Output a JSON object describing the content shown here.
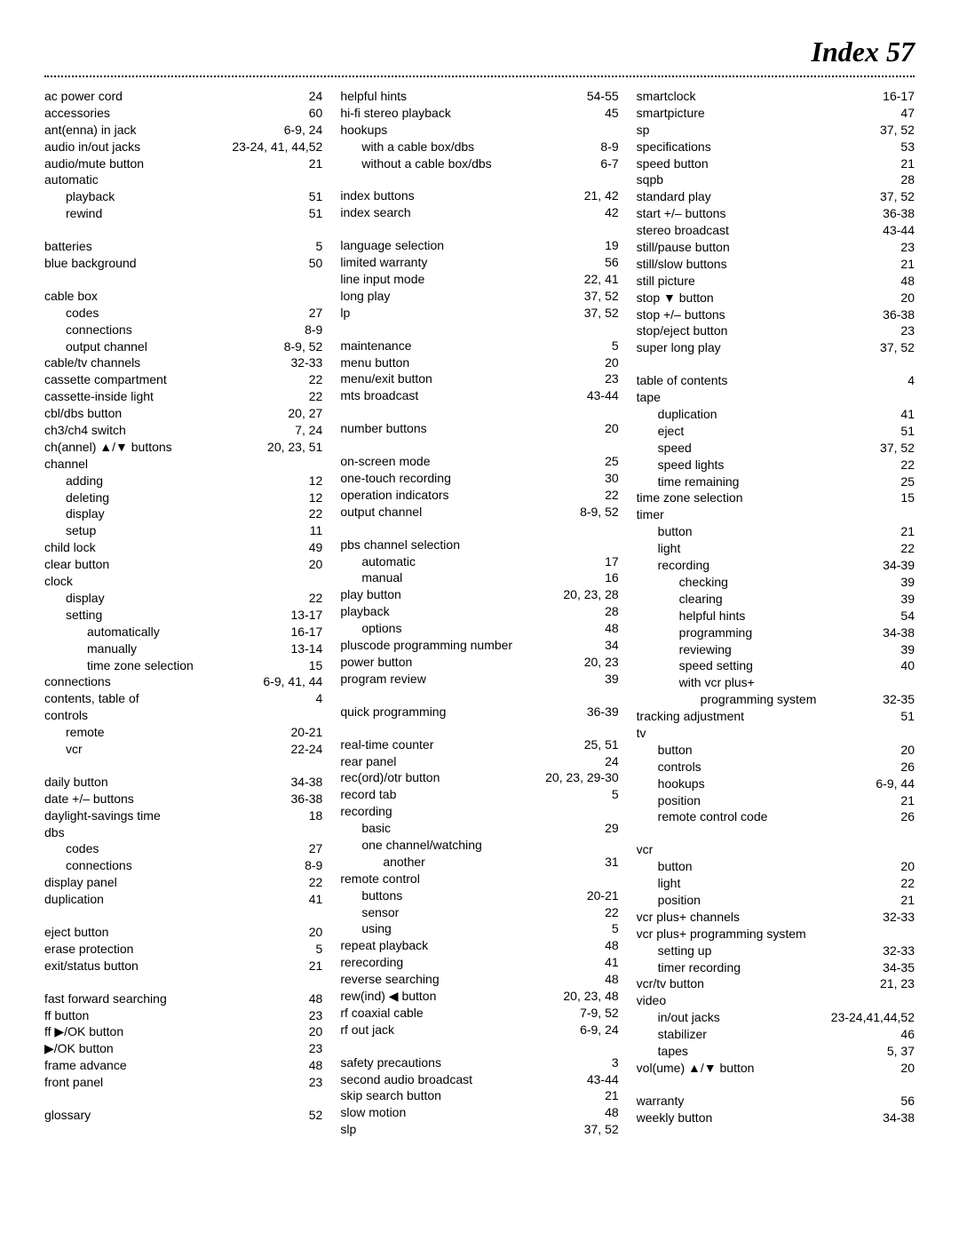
{
  "title": "Index  57",
  "columns": [
    [
      {
        "t": "ac power cord",
        "p": "24"
      },
      {
        "t": "accessories",
        "p": "60"
      },
      {
        "t": "ant(enna) in jack",
        "p": "6-9, 24"
      },
      {
        "t": "audio in/out jacks",
        "p": "23-24, 41, 44,52"
      },
      {
        "t": "audio/mute button",
        "p": "21"
      },
      {
        "t": "automatic",
        "p": ""
      },
      {
        "t": "playback",
        "p": "51",
        "i": 1
      },
      {
        "t": "rewind",
        "p": "51",
        "i": 1
      },
      {
        "gap": true
      },
      {
        "t": "batteries",
        "p": "5"
      },
      {
        "t": "blue background",
        "p": "50"
      },
      {
        "gap": true
      },
      {
        "t": "cable box",
        "p": ""
      },
      {
        "t": "codes",
        "p": "27",
        "i": 1
      },
      {
        "t": "connections",
        "p": "8-9",
        "i": 1
      },
      {
        "t": "output channel",
        "p": "8-9, 52",
        "i": 1
      },
      {
        "t": "cable/tv channels",
        "p": "32-33"
      },
      {
        "t": "cassette compartment",
        "p": "22"
      },
      {
        "t": "cassette-inside light",
        "p": "22"
      },
      {
        "t": "cbl/dbs button",
        "p": "20, 27"
      },
      {
        "t": "ch3/ch4 switch",
        "p": "7, 24"
      },
      {
        "t": "ch(annel) ▲/▼ buttons",
        "p": "20, 23, 51"
      },
      {
        "t": "channel",
        "p": ""
      },
      {
        "t": "adding",
        "p": "12",
        "i": 1
      },
      {
        "t": "deleting",
        "p": "12",
        "i": 1
      },
      {
        "t": "display",
        "p": "22",
        "i": 1
      },
      {
        "t": "setup",
        "p": "11",
        "i": 1
      },
      {
        "t": "child lock",
        "p": "49"
      },
      {
        "t": "clear button",
        "p": "20"
      },
      {
        "t": "clock",
        "p": ""
      },
      {
        "t": "display",
        "p": "22",
        "i": 1
      },
      {
        "t": "setting",
        "p": "13-17",
        "i": 1
      },
      {
        "t": "automatically",
        "p": "16-17",
        "i": 2
      },
      {
        "t": "manually",
        "p": "13-14",
        "i": 2
      },
      {
        "t": "time zone selection",
        "p": "15",
        "i": 2
      },
      {
        "t": "connections",
        "p": "6-9, 41, 44"
      },
      {
        "t": "contents, table of",
        "p": "4"
      },
      {
        "t": "controls",
        "p": ""
      },
      {
        "t": "remote",
        "p": "20-21",
        "i": 1
      },
      {
        "t": "vcr",
        "p": "22-24",
        "i": 1
      },
      {
        "gap": true
      },
      {
        "t": "daily button",
        "p": "34-38"
      },
      {
        "t": "date +/– buttons",
        "p": "36-38"
      },
      {
        "t": "daylight-savings time",
        "p": "18"
      },
      {
        "t": "dbs",
        "p": ""
      },
      {
        "t": "codes",
        "p": "27",
        "i": 1
      },
      {
        "t": "connections",
        "p": "8-9",
        "i": 1
      },
      {
        "t": "display panel",
        "p": "22"
      },
      {
        "t": "duplication",
        "p": "41"
      },
      {
        "gap": true
      },
      {
        "t": "eject button",
        "p": "20"
      },
      {
        "t": "erase protection",
        "p": "5"
      },
      {
        "t": "exit/status button",
        "p": "21"
      },
      {
        "gap": true
      },
      {
        "t": "fast forward searching",
        "p": "48"
      },
      {
        "t": "ff button",
        "p": "23"
      },
      {
        "t": "ff ▶/OK button",
        "p": "20"
      },
      {
        "t": "▶/OK button",
        "p": "23"
      },
      {
        "t": "frame advance",
        "p": "48"
      },
      {
        "t": "front panel",
        "p": "23"
      },
      {
        "gap": true
      },
      {
        "t": "glossary",
        "p": "52"
      }
    ],
    [
      {
        "t": "helpful hints",
        "p": "54-55"
      },
      {
        "t": "hi-fi stereo playback",
        "p": "45"
      },
      {
        "t": "hookups",
        "p": ""
      },
      {
        "t": "with a cable box/dbs",
        "p": "8-9",
        "i": 1
      },
      {
        "t": "without a cable box/dbs",
        "p": "6-7",
        "i": 1
      },
      {
        "gap": true
      },
      {
        "t": "index buttons",
        "p": "21, 42"
      },
      {
        "t": "index search",
        "p": "42"
      },
      {
        "gap": true
      },
      {
        "t": "language selection",
        "p": "19"
      },
      {
        "t": "limited warranty",
        "p": "56"
      },
      {
        "t": "line input mode",
        "p": "22, 41"
      },
      {
        "t": "long play",
        "p": "37, 52"
      },
      {
        "t": "lp",
        "p": "37, 52"
      },
      {
        "gap": true
      },
      {
        "t": "maintenance",
        "p": "5"
      },
      {
        "t": "menu button",
        "p": "20"
      },
      {
        "t": "menu/exit button",
        "p": "23"
      },
      {
        "t": "mts broadcast",
        "p": "43-44"
      },
      {
        "gap": true
      },
      {
        "t": "number buttons",
        "p": "20"
      },
      {
        "gap": true
      },
      {
        "t": "on-screen mode",
        "p": "25"
      },
      {
        "t": "one-touch recording",
        "p": "30"
      },
      {
        "t": "operation indicators",
        "p": "22"
      },
      {
        "t": "output channel",
        "p": "8-9, 52"
      },
      {
        "gap": true
      },
      {
        "t": "pbs channel selection",
        "p": ""
      },
      {
        "t": "automatic",
        "p": "17",
        "i": 1
      },
      {
        "t": "manual",
        "p": "16",
        "i": 1
      },
      {
        "t": "play button",
        "p": "20, 23, 28"
      },
      {
        "t": "playback",
        "p": "28"
      },
      {
        "t": "options",
        "p": "48",
        "i": 1
      },
      {
        "t": "pluscode programming number",
        "p": "34"
      },
      {
        "t": "power button",
        "p": "20, 23"
      },
      {
        "t": "program review",
        "p": "39"
      },
      {
        "gap": true
      },
      {
        "t": "quick programming",
        "p": "36-39"
      },
      {
        "gap": true
      },
      {
        "t": "real-time counter",
        "p": "25, 51"
      },
      {
        "t": "rear panel",
        "p": "24"
      },
      {
        "t": "rec(ord)/otr button",
        "p": "20, 23, 29-30"
      },
      {
        "t": "record tab",
        "p": "5"
      },
      {
        "t": "recording",
        "p": ""
      },
      {
        "t": "basic",
        "p": "29",
        "i": 1
      },
      {
        "t": "one channel/watching",
        "p": "",
        "i": 1
      },
      {
        "t": "another",
        "p": "31",
        "i": 2
      },
      {
        "t": "remote control",
        "p": ""
      },
      {
        "t": "buttons",
        "p": "20-21",
        "i": 1
      },
      {
        "t": "sensor",
        "p": "22",
        "i": 1
      },
      {
        "t": "using",
        "p": "5",
        "i": 1
      },
      {
        "t": "repeat playback",
        "p": "48"
      },
      {
        "t": "rerecording",
        "p": "41"
      },
      {
        "t": "reverse searching",
        "p": "48"
      },
      {
        "t": "rew(ind) ◀ button",
        "p": "20, 23, 48"
      },
      {
        "t": "rf coaxial cable",
        "p": "7-9, 52"
      },
      {
        "t": "rf out jack",
        "p": "6-9, 24"
      },
      {
        "gap": true
      },
      {
        "t": "safety precautions",
        "p": "3"
      },
      {
        "t": "second audio broadcast",
        "p": "43-44"
      },
      {
        "t": "skip search button",
        "p": "21"
      },
      {
        "t": "slow motion",
        "p": "48"
      },
      {
        "t": "slp",
        "p": "37, 52"
      }
    ],
    [
      {
        "t": "smartclock",
        "p": "16-17"
      },
      {
        "t": "smartpicture",
        "p": "47"
      },
      {
        "t": "sp",
        "p": "37, 52"
      },
      {
        "t": "specifications",
        "p": "53"
      },
      {
        "t": "speed button",
        "p": "21"
      },
      {
        "t": "sqpb",
        "p": "28"
      },
      {
        "t": "standard play",
        "p": "37, 52"
      },
      {
        "t": "start +/– buttons",
        "p": "36-38"
      },
      {
        "t": "stereo broadcast",
        "p": "43-44"
      },
      {
        "t": "still/pause button",
        "p": "23"
      },
      {
        "t": "still/slow buttons",
        "p": "21"
      },
      {
        "t": "still picture",
        "p": "48"
      },
      {
        "t": "stop ▼ button",
        "p": "20"
      },
      {
        "t": "stop +/– buttons",
        "p": "36-38"
      },
      {
        "t": "stop/eject button",
        "p": "23"
      },
      {
        "t": "super long play",
        "p": "37, 52"
      },
      {
        "gap": true
      },
      {
        "t": "table of contents",
        "p": "4"
      },
      {
        "t": "tape",
        "p": ""
      },
      {
        "t": "duplication",
        "p": "41",
        "i": 1
      },
      {
        "t": "eject",
        "p": "51",
        "i": 1
      },
      {
        "t": "speed",
        "p": "37, 52",
        "i": 1
      },
      {
        "t": "speed lights",
        "p": "22",
        "i": 1
      },
      {
        "t": "time remaining",
        "p": "25",
        "i": 1
      },
      {
        "t": "time zone selection",
        "p": "15"
      },
      {
        "t": "timer",
        "p": ""
      },
      {
        "t": "button",
        "p": "21",
        "i": 1
      },
      {
        "t": "light",
        "p": "22",
        "i": 1
      },
      {
        "t": "recording",
        "p": "34-39",
        "i": 1
      },
      {
        "t": "checking",
        "p": "39",
        "i": 2
      },
      {
        "t": "clearing",
        "p": "39",
        "i": 2
      },
      {
        "t": "helpful hints",
        "p": "54",
        "i": 2
      },
      {
        "t": "programming",
        "p": "34-38",
        "i": 2
      },
      {
        "t": "reviewing",
        "p": "39",
        "i": 2
      },
      {
        "t": "speed setting",
        "p": "40",
        "i": 2
      },
      {
        "t": "with vcr plus+",
        "p": "",
        "i": 2
      },
      {
        "t": "programming system",
        "p": "32-35",
        "i": 3
      },
      {
        "t": "tracking adjustment",
        "p": "51"
      },
      {
        "t": "tv",
        "p": ""
      },
      {
        "t": "button",
        "p": "20",
        "i": 1
      },
      {
        "t": "controls",
        "p": "26",
        "i": 1
      },
      {
        "t": "hookups",
        "p": "6-9, 44",
        "i": 1
      },
      {
        "t": "position",
        "p": "21",
        "i": 1
      },
      {
        "t": "remote control code",
        "p": "26",
        "i": 1
      },
      {
        "gap": true
      },
      {
        "t": "vcr",
        "p": ""
      },
      {
        "t": "button",
        "p": "20",
        "i": 1
      },
      {
        "t": "light",
        "p": "22",
        "i": 1
      },
      {
        "t": "position",
        "p": "21",
        "i": 1
      },
      {
        "t": "vcr plus+ channels",
        "p": "32-33"
      },
      {
        "t": "vcr plus+ programming system",
        "p": ""
      },
      {
        "t": "setting up",
        "p": "32-33",
        "i": 1
      },
      {
        "t": "timer recording",
        "p": "34-35",
        "i": 1
      },
      {
        "t": "vcr/tv button",
        "p": "21, 23"
      },
      {
        "t": "video",
        "p": ""
      },
      {
        "t": "in/out jacks",
        "p": "23-24,41,44,52",
        "i": 1
      },
      {
        "t": "stabilizer",
        "p": "46",
        "i": 1
      },
      {
        "t": "tapes",
        "p": "5, 37",
        "i": 1
      },
      {
        "t": "vol(ume) ▲/▼ button",
        "p": "20"
      },
      {
        "gap": true
      },
      {
        "t": "warranty",
        "p": "56"
      },
      {
        "t": "weekly button",
        "p": "34-38"
      }
    ]
  ]
}
